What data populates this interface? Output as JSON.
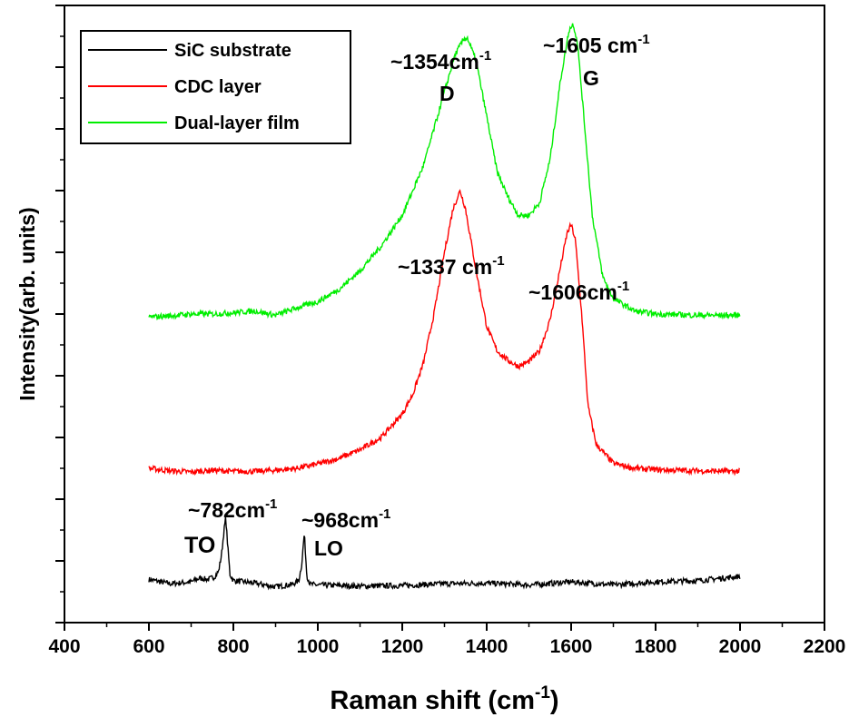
{
  "chart_data": {
    "type": "line",
    "xlabel": "Raman shift (cm",
    "xlabel_sup": "-1",
    "xlabel_suffix": ")",
    "ylabel": "Intensity(arb. units)",
    "xlim": [
      400,
      2200
    ],
    "ylim": [
      0,
      100
    ],
    "x_ticks": [
      "400",
      "600",
      "800",
      "1000",
      "1200",
      "1400",
      "1600",
      "1800",
      "2000",
      "2200"
    ],
    "y_tick_labels_shown": false,
    "grid": false,
    "legend_position": "top-left",
    "series": [
      {
        "name": "SiC substrate",
        "color": "#000000",
        "x": [
          600,
          650,
          700,
          720,
          740,
          755,
          765,
          772,
          778,
          782,
          786,
          792,
          800,
          850,
          900,
          940,
          955,
          962,
          968,
          974,
          982,
          1000,
          1100,
          1200,
          1300,
          1400,
          1500,
          1600,
          1700,
          1800,
          1900,
          2000
        ],
        "y": [
          7.0,
          6.3,
          6.6,
          7.2,
          7.0,
          7.4,
          8.3,
          11.0,
          15.0,
          17.0,
          13.0,
          7.8,
          6.8,
          6.4,
          5.8,
          6.2,
          6.8,
          9.5,
          14.5,
          7.6,
          6.2,
          6.1,
          5.9,
          6.0,
          6.3,
          6.4,
          6.1,
          6.6,
          6.1,
          6.6,
          6.8,
          7.5
        ]
      },
      {
        "name": "CDC layer",
        "color": "#ff0000",
        "x": [
          600,
          650,
          700,
          750,
          800,
          850,
          900,
          950,
          1000,
          1050,
          1100,
          1150,
          1200,
          1225,
          1250,
          1275,
          1300,
          1320,
          1337,
          1350,
          1375,
          1400,
          1425,
          1450,
          1475,
          1500,
          1525,
          1550,
          1570,
          1590,
          1600,
          1610,
          1625,
          1640,
          1660,
          1700,
          1750,
          1800,
          1900,
          2000
        ],
        "y": [
          25.0,
          24.6,
          24.4,
          24.7,
          24.5,
          24.5,
          24.7,
          25.0,
          25.7,
          26.6,
          28.0,
          30.0,
          33.8,
          37.0,
          42.0,
          50.0,
          60.0,
          67.0,
          70.0,
          67.0,
          57.0,
          48.0,
          44.0,
          42.5,
          41.5,
          42.3,
          44.0,
          49.0,
          56.0,
          63.0,
          64.5,
          62.0,
          50.0,
          35.0,
          28.8,
          25.8,
          25.0,
          24.8,
          24.6,
          24.5
        ]
      },
      {
        "name": "Dual-layer film",
        "color": "#00ee00",
        "x": [
          600,
          650,
          700,
          750,
          800,
          850,
          900,
          950,
          1000,
          1050,
          1100,
          1150,
          1200,
          1250,
          1275,
          1300,
          1325,
          1345,
          1354,
          1375,
          1400,
          1425,
          1450,
          1475,
          1500,
          1525,
          1550,
          1575,
          1595,
          1605,
          1615,
          1630,
          1650,
          1675,
          1700,
          1750,
          1800,
          1900,
          2000
        ],
        "y": [
          49.5,
          49.7,
          50.0,
          50.0,
          50.2,
          50.5,
          49.8,
          51.0,
          52.0,
          54.0,
          57.0,
          61.0,
          66.0,
          74.0,
          80.0,
          86.0,
          92.0,
          94.5,
          94.8,
          91.0,
          82.0,
          73.0,
          69.0,
          66.0,
          66.0,
          68.0,
          75.0,
          88.0,
          96.0,
          97.0,
          94.0,
          82.0,
          66.0,
          56.0,
          52.5,
          50.5,
          50.0,
          49.8,
          49.8
        ]
      }
    ],
    "annotations": [
      {
        "id": "sic-to",
        "lines": [
          {
            "text": "~782cm",
            "sup": "-1"
          },
          {
            "text": "TO"
          }
        ]
      },
      {
        "id": "sic-lo",
        "lines": [
          {
            "text": "~968cm",
            "sup": "-1"
          },
          {
            "text": "LO"
          }
        ]
      },
      {
        "id": "cdc-d",
        "lines": [
          {
            "text": "~1337 cm",
            "sup": "-1"
          }
        ]
      },
      {
        "id": "cdc-g",
        "lines": [
          {
            "text": "~1606cm",
            "sup": "-1"
          }
        ]
      },
      {
        "id": "dual-d",
        "lines": [
          {
            "text": "~1354cm",
            "sup": "-1"
          },
          {
            "text": "D"
          }
        ]
      },
      {
        "id": "dual-g",
        "lines": [
          {
            "text": "~1605 cm",
            "sup": "-1"
          },
          {
            "text": "G"
          }
        ]
      }
    ]
  }
}
